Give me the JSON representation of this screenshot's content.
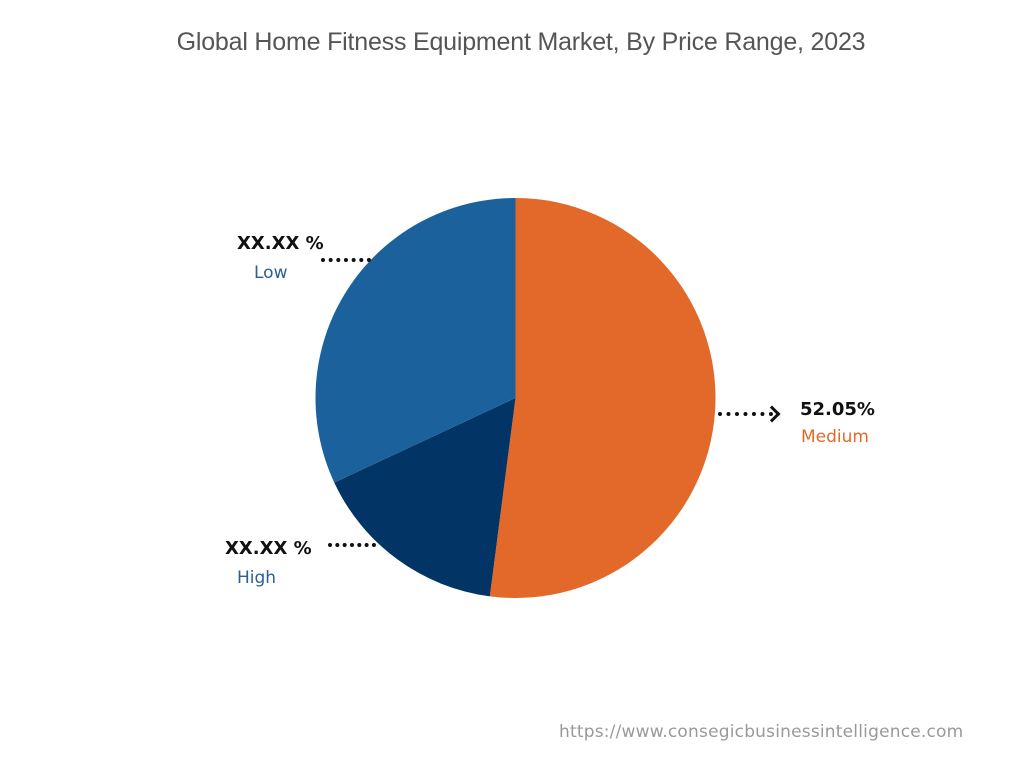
{
  "chart_data": {
    "type": "pie",
    "title": "Global Home Fitness Equipment Market, By Price Range, 2023",
    "start_angle_deg": 0,
    "direction": "clockwise",
    "slices": [
      {
        "label": "Medium",
        "value": 52.05,
        "display": "52.05%",
        "color": "#E3692A"
      },
      {
        "label": "High",
        "value": 16.0,
        "display": "XX.XX %",
        "color": "#023466"
      },
      {
        "label": "Low",
        "value": 31.95,
        "display": "XX.XX %",
        "color": "#1B629C"
      }
    ],
    "legend": "none",
    "data_labels": "outside with dotted leader lines"
  },
  "labels": {
    "low": {
      "pct": "XX.XX %",
      "name": "Low",
      "color": "#2B5E93"
    },
    "high": {
      "pct": "XX.XX %",
      "name": "High",
      "color": "#2B5E93"
    },
    "medium": {
      "pct": "52.05%",
      "name": "Medium",
      "color": "#E3692A"
    }
  },
  "source": "https://www.consegicbusinessintelligence.com"
}
